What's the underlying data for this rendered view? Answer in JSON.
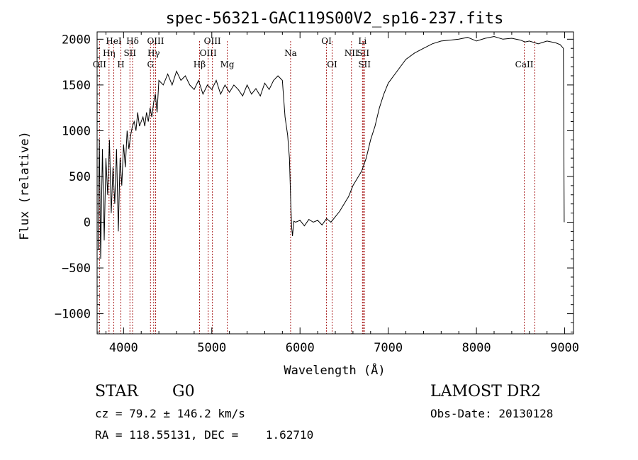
{
  "chart_data": {
    "type": "line",
    "title": "spec-56321-GAC119S00V2_sp16-237.fits",
    "xlabel": "Wavelength (Å)",
    "ylabel": "Flux (relative)",
    "xlim": [
      3700,
      9100
    ],
    "ylim": [
      -1220,
      2080
    ],
    "xticks": [
      4000,
      5000,
      6000,
      7000,
      8000,
      9000
    ],
    "xtick_labels": [
      "4000",
      "5000",
      "6000",
      "7000",
      "8000",
      "9000"
    ],
    "yticks": [
      -1000,
      -500,
      0,
      500,
      1000,
      1500,
      2000
    ],
    "ytick_labels": [
      "−1000",
      "−500",
      "0",
      "500",
      "1000",
      "1500",
      "2000"
    ],
    "line_color": "#000000",
    "marker_color": "#aa2222",
    "series": [
      {
        "x": [
          3712,
          3725,
          3740,
          3760,
          3780,
          3800,
          3820,
          3840,
          3860,
          3880,
          3900,
          3920,
          3940,
          3960,
          3980,
          4000,
          4020,
          4040,
          4060,
          4080,
          4100,
          4120,
          4140,
          4160,
          4180,
          4200,
          4220,
          4240,
          4260,
          4280,
          4300,
          4320,
          4340,
          4360,
          4380,
          4400,
          4450,
          4500,
          4550,
          4600,
          4650,
          4700,
          4750,
          4800,
          4850,
          4900,
          4950,
          5000,
          5050,
          5100,
          5150,
          5200,
          5250,
          5300,
          5350,
          5400,
          5450,
          5500,
          5550,
          5600,
          5650,
          5700,
          5750,
          5800,
          5830,
          5860,
          5880,
          5895,
          5905,
          5915,
          5930,
          5950,
          6000,
          6050,
          6100,
          6150,
          6200,
          6250,
          6300,
          6350,
          6400,
          6450,
          6500,
          6550,
          6600,
          6650,
          6700,
          6750,
          6800,
          6850,
          6900,
          6950,
          7000,
          7100,
          7200,
          7300,
          7400,
          7500,
          7600,
          7700,
          7800,
          7900,
          8000,
          8100,
          8200,
          8300,
          8400,
          8500,
          8550,
          8600,
          8700,
          8800,
          8900,
          8950,
          8985,
          8990,
          8992,
          8995
        ],
        "y": [
          -300,
          900,
          -400,
          800,
          -200,
          700,
          300,
          900,
          100,
          600,
          200,
          800,
          -100,
          700,
          400,
          850,
          600,
          1000,
          800,
          950,
          1050,
          1100,
          1000,
          1200,
          1050,
          1100,
          1150,
          1050,
          1200,
          1100,
          1250,
          1150,
          1300,
          1400,
          1200,
          1550,
          1500,
          1620,
          1500,
          1650,
          1550,
          1600,
          1500,
          1450,
          1550,
          1400,
          1500,
          1450,
          1550,
          1400,
          1500,
          1420,
          1500,
          1450,
          1380,
          1500,
          1400,
          1460,
          1380,
          1520,
          1450,
          1550,
          1600,
          1550,
          1150,
          950,
          700,
          200,
          -50,
          -150,
          10,
          0,
          20,
          -40,
          30,
          0,
          20,
          -30,
          40,
          0,
          60,
          120,
          200,
          280,
          400,
          480,
          560,
          700,
          900,
          1050,
          1250,
          1400,
          1520,
          1650,
          1780,
          1850,
          1900,
          1950,
          1980,
          1990,
          2000,
          2020,
          1980,
          2010,
          2030,
          2000,
          2010,
          1990,
          1970,
          1980,
          1950,
          1980,
          1960,
          1940,
          1900,
          1200,
          500,
          0
        ]
      }
    ],
    "lines": [
      {
        "label": "OII",
        "x": 3727,
        "row": 3
      },
      {
        "label": "Hη",
        "x": 3835,
        "row": 2
      },
      {
        "label": "HeI",
        "x": 3889,
        "row": 1
      },
      {
        "label": "H",
        "x": 3969,
        "row": 3
      },
      {
        "label": "Hδ",
        "x": 4102,
        "row": 1
      },
      {
        "label": "SII",
        "x": 4072,
        "row": 2
      },
      {
        "label": "G",
        "x": 4305,
        "row": 3
      },
      {
        "label": "Hγ",
        "x": 4341,
        "row": 2
      },
      {
        "label": "OIII",
        "x": 4363,
        "row": 1
      },
      {
        "label": "Hβ",
        "x": 4861,
        "row": 3
      },
      {
        "label": "OIII",
        "x": 4959,
        "row": 2
      },
      {
        "label": "OIII",
        "x": 5007,
        "row": 1
      },
      {
        "label": "Mg",
        "x": 5175,
        "row": 3
      },
      {
        "label": "Na",
        "x": 5893,
        "row": 2
      },
      {
        "label": "OI",
        "x": 6300,
        "row": 1
      },
      {
        "label": "OI",
        "x": 6364,
        "row": 3
      },
      {
        "label": "NII",
        "x": 6583,
        "row": 2
      },
      {
        "label": "Li",
        "x": 6708,
        "row": 1
      },
      {
        "label": "SII",
        "x": 6716,
        "row": 2
      },
      {
        "label": "SII",
        "x": 6731,
        "row": 3
      },
      {
        "label": "CaII",
        "x": 8542,
        "row": 3
      },
      {
        "label": "",
        "x": 8662,
        "row": 1
      }
    ]
  },
  "info": {
    "class": "STAR",
    "subclass": "G0",
    "survey": "LAMOST DR2",
    "cz": "cz = 79.2 ± 146.2 km/s",
    "obs_date": "Obs-Date: 20130128",
    "coords": "RA = 118.55131, DEC =    1.62710"
  }
}
